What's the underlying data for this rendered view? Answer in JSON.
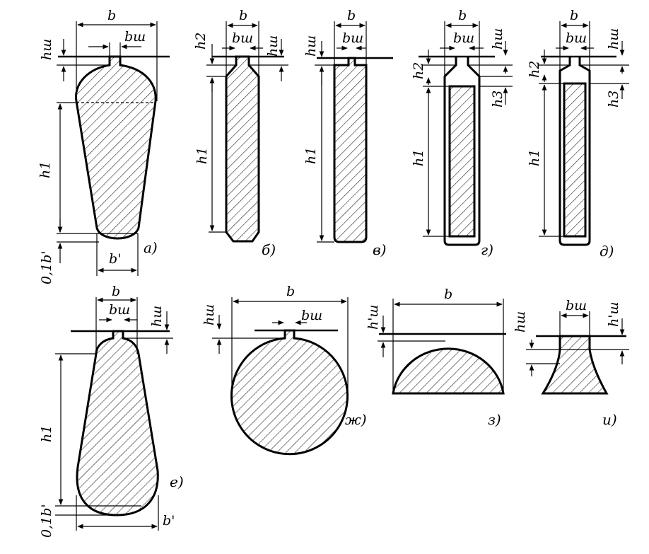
{
  "labels": {
    "b": "b",
    "b_sh": "bш",
    "h_sh": "hш",
    "h_sh_prime": "h'ш",
    "h1": "h1",
    "h2": "h2",
    "h3": "h3",
    "b_prime": "b'",
    "tenth_b_prime": "0,1b'"
  },
  "captions": {
    "a": "а)",
    "b": "б)",
    "v": "в)",
    "g": "г)",
    "d": "д)",
    "e": "е)",
    "zh": "ж)",
    "z": "з)",
    "i": "и)"
  }
}
